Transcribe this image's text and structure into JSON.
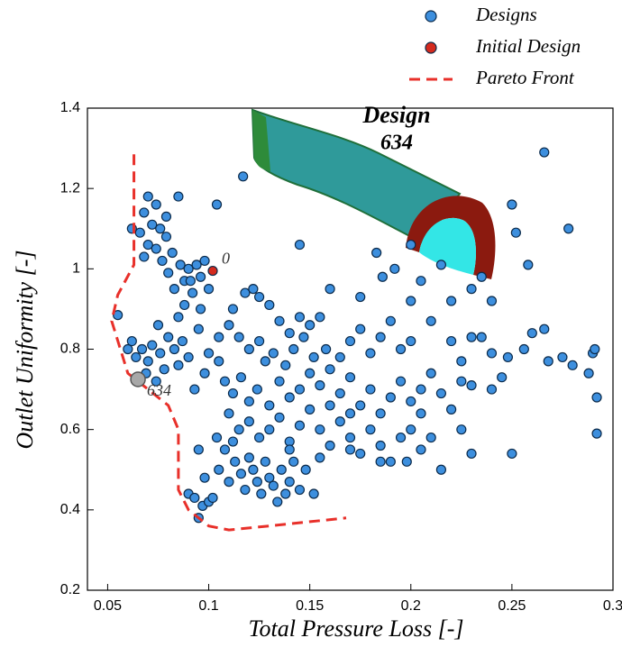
{
  "chart_data": {
    "type": "scatter",
    "xlabel": "Total Pressure Loss [-]",
    "ylabel": "Outlet Uniformity [-]",
    "xlim": [
      0.04,
      0.3
    ],
    "ylim": [
      0.2,
      1.4
    ],
    "xticks": [
      0.05,
      0.1,
      0.15,
      0.2,
      0.25,
      0.3
    ],
    "yticks": [
      0.2,
      0.4,
      0.6,
      0.8,
      1,
      1.2,
      1.4
    ],
    "grid": false,
    "legend": "top-right",
    "annotation": {
      "title": "Design",
      "label": "634"
    },
    "highlight": {
      "label": "634",
      "x": 0.065,
      "y": 0.725,
      "color": "#a8a8a8"
    },
    "series": [
      {
        "name": "Designs",
        "mode": "markers",
        "color": "#3d8fde",
        "x": [
          0.07,
          0.074,
          0.068,
          0.085,
          0.072,
          0.076,
          0.066,
          0.079,
          0.07,
          0.074,
          0.082,
          0.068,
          0.077,
          0.086,
          0.09,
          0.094,
          0.08,
          0.088,
          0.096,
          0.083,
          0.092,
          0.1,
          0.088,
          0.096,
          0.085,
          0.104,
          0.098,
          0.062,
          0.079,
          0.091,
          0.055,
          0.062,
          0.067,
          0.072,
          0.076,
          0.064,
          0.07,
          0.075,
          0.08,
          0.083,
          0.087,
          0.09,
          0.069,
          0.078,
          0.085,
          0.095,
          0.1,
          0.098,
          0.093,
          0.105,
          0.06,
          0.074,
          0.112,
          0.118,
          0.122,
          0.125,
          0.13,
          0.135,
          0.14,
          0.145,
          0.15,
          0.155,
          0.11,
          0.115,
          0.12,
          0.125,
          0.128,
          0.132,
          0.138,
          0.142,
          0.147,
          0.152,
          0.158,
          0.16,
          0.165,
          0.17,
          0.175,
          0.18,
          0.185,
          0.19,
          0.195,
          0.2,
          0.105,
          0.108,
          0.112,
          0.116,
          0.12,
          0.124,
          0.13,
          0.135,
          0.14,
          0.145,
          0.15,
          0.155,
          0.16,
          0.165,
          0.17,
          0.175,
          0.18,
          0.185,
          0.19,
          0.195,
          0.2,
          0.205,
          0.21,
          0.11,
          0.115,
          0.12,
          0.125,
          0.13,
          0.135,
          0.14,
          0.145,
          0.15,
          0.155,
          0.16,
          0.165,
          0.17,
          0.175,
          0.18,
          0.185,
          0.19,
          0.195,
          0.2,
          0.205,
          0.21,
          0.09,
          0.093,
          0.095,
          0.097,
          0.1,
          0.102,
          0.098,
          0.105,
          0.108,
          0.11,
          0.113,
          0.116,
          0.118,
          0.12,
          0.122,
          0.124,
          0.126,
          0.128,
          0.13,
          0.132,
          0.134,
          0.136,
          0.138,
          0.14,
          0.142,
          0.145,
          0.148,
          0.152,
          0.155,
          0.104,
          0.112,
          0.095,
          0.117,
          0.145,
          0.16,
          0.175,
          0.183,
          0.186,
          0.192,
          0.2,
          0.205,
          0.215,
          0.22,
          0.23,
          0.235,
          0.24,
          0.25,
          0.252,
          0.258,
          0.266,
          0.278,
          0.2,
          0.21,
          0.22,
          0.225,
          0.23,
          0.235,
          0.24,
          0.248,
          0.256,
          0.26,
          0.266,
          0.268,
          0.275,
          0.28,
          0.29,
          0.291,
          0.288,
          0.292,
          0.292,
          0.215,
          0.225,
          0.23,
          0.24,
          0.245,
          0.22,
          0.225,
          0.23,
          0.215,
          0.25,
          0.205,
          0.198,
          0.185,
          0.17,
          0.14,
          0.17
        ],
        "values": [
          1.18,
          1.16,
          1.14,
          1.18,
          1.11,
          1.1,
          1.09,
          1.08,
          1.06,
          1.05,
          1.04,
          1.03,
          1.02,
          1.01,
          1.0,
          1.01,
          0.99,
          0.97,
          0.98,
          0.95,
          0.94,
          0.95,
          0.91,
          0.9,
          0.88,
          1.16,
          1.02,
          1.1,
          1.13,
          0.97,
          0.885,
          0.82,
          0.8,
          0.81,
          0.79,
          0.78,
          0.77,
          0.86,
          0.83,
          0.8,
          0.82,
          0.78,
          0.74,
          0.75,
          0.76,
          0.85,
          0.79,
          0.74,
          0.7,
          0.83,
          0.8,
          0.72,
          0.9,
          0.94,
          0.95,
          0.93,
          0.91,
          0.87,
          0.84,
          0.88,
          0.86,
          0.88,
          0.86,
          0.83,
          0.8,
          0.82,
          0.77,
          0.79,
          0.76,
          0.8,
          0.83,
          0.78,
          0.8,
          0.75,
          0.78,
          0.82,
          0.85,
          0.79,
          0.83,
          0.87,
          0.8,
          0.82,
          0.77,
          0.72,
          0.69,
          0.73,
          0.67,
          0.7,
          0.66,
          0.72,
          0.68,
          0.7,
          0.74,
          0.71,
          0.66,
          0.69,
          0.73,
          0.66,
          0.7,
          0.64,
          0.68,
          0.72,
          0.67,
          0.7,
          0.74,
          0.64,
          0.6,
          0.62,
          0.58,
          0.6,
          0.63,
          0.57,
          0.61,
          0.65,
          0.6,
          0.56,
          0.62,
          0.58,
          0.54,
          0.6,
          0.56,
          0.52,
          0.58,
          0.6,
          0.64,
          0.58,
          0.44,
          0.43,
          0.38,
          0.41,
          0.42,
          0.43,
          0.48,
          0.5,
          0.55,
          0.47,
          0.52,
          0.49,
          0.45,
          0.53,
          0.5,
          0.47,
          0.44,
          0.52,
          0.48,
          0.46,
          0.42,
          0.5,
          0.44,
          0.47,
          0.52,
          0.45,
          0.5,
          0.44,
          0.53,
          0.58,
          0.57,
          0.55,
          1.23,
          1.06,
          0.95,
          0.93,
          1.04,
          0.98,
          1.0,
          1.06,
          0.97,
          1.01,
          0.92,
          0.95,
          0.98,
          0.92,
          1.16,
          1.09,
          1.01,
          1.29,
          1.1,
          0.92,
          0.87,
          0.82,
          0.77,
          0.83,
          0.83,
          0.79,
          0.78,
          0.8,
          0.84,
          0.85,
          0.77,
          0.78,
          0.76,
          0.79,
          0.8,
          0.74,
          0.68,
          0.59,
          0.69,
          0.72,
          0.71,
          0.7,
          0.73,
          0.65,
          0.6,
          0.54,
          0.5,
          0.54,
          0.55,
          0.52,
          0.52,
          0.55,
          0.55,
          0.64
        ]
      },
      {
        "name": "Initial Design",
        "mode": "markers",
        "color": "#d42a1e",
        "point_labels": [
          "0"
        ],
        "x": [
          0.102
        ],
        "values": [
          0.995
        ]
      },
      {
        "name": "Pareto Front",
        "mode": "lines",
        "color": "#e8302a",
        "dashed": true,
        "x": [
          0.063,
          0.063,
          0.055,
          0.052,
          0.06,
          0.07,
          0.08,
          0.085,
          0.085,
          0.09,
          0.1,
          0.11,
          0.13,
          0.168
        ],
        "values": [
          1.285,
          1.01,
          0.935,
          0.87,
          0.74,
          0.7,
          0.66,
          0.6,
          0.45,
          0.4,
          0.36,
          0.35,
          0.36,
          0.38
        ]
      }
    ]
  }
}
